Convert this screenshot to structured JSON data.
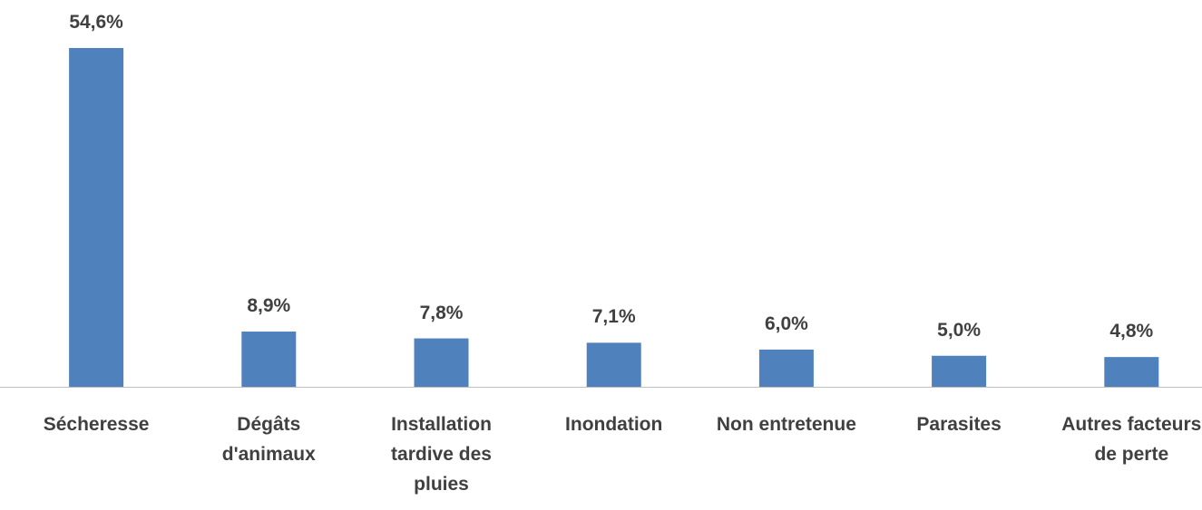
{
  "chart_data": {
    "type": "bar",
    "categories": [
      "Sécheresse",
      "Dégâts d'animaux",
      "Installation tardive des pluies",
      "Inondation",
      "Non entretenue",
      "Parasites",
      "Autres facteurs de perte"
    ],
    "values": [
      54.6,
      8.9,
      7.8,
      7.1,
      6.0,
      5.0,
      4.8
    ],
    "value_labels": [
      "54,6%",
      "8,9%",
      "7,8%",
      "7,1%",
      "6,0%",
      "5,0%",
      "4,8%"
    ],
    "color": "#4f81bd"
  }
}
